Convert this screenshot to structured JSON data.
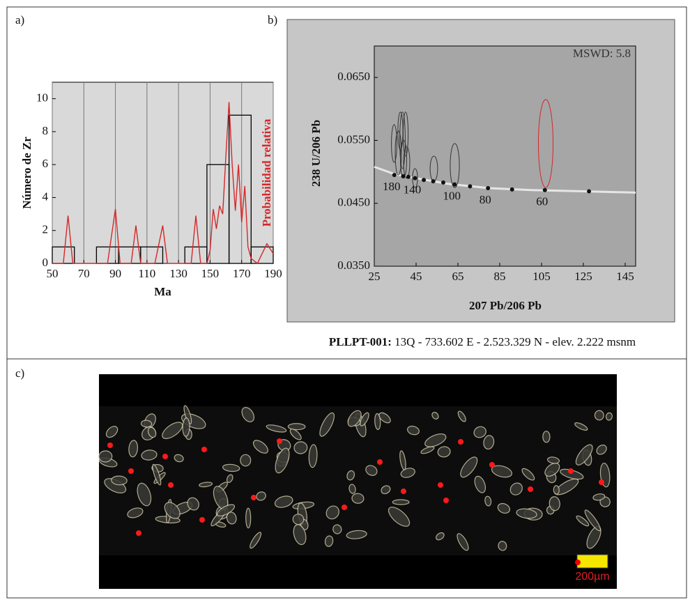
{
  "panel_labels": [
    "a)",
    "b)",
    "c)"
  ],
  "caption": {
    "sample": "PLLPT-001:",
    "text": " 13Q - 733.602 E - 2.523.329 N - elev. 2.222 msnm"
  },
  "scale_bar": "200µm",
  "chart_data": [
    {
      "type": "histogram",
      "xlabel": "Ma",
      "ylabel": "Número de Zr",
      "bins": [
        50,
        64,
        78,
        92,
        106,
        120,
        134,
        148,
        162,
        176,
        190
      ],
      "counts": [
        1,
        0,
        1,
        1,
        1,
        0,
        1,
        6,
        9,
        1
      ],
      "color": "#000000",
      "probability": {
        "name": "Probabilidad relativa",
        "color": "#d62728",
        "x": [
          50,
          57,
          60,
          63,
          70,
          85,
          90,
          93,
          100,
          103,
          106,
          115,
          120,
          123,
          138,
          141,
          144,
          148,
          150,
          152,
          154,
          156,
          158,
          160,
          162,
          164,
          166,
          168,
          170,
          172,
          174,
          176,
          180,
          186,
          190
        ],
        "values": [
          0,
          0,
          2.9,
          0,
          0,
          0,
          3.3,
          0,
          0,
          2.3,
          0,
          0,
          2.3,
          0,
          0,
          2.9,
          0,
          0,
          0.8,
          3.3,
          2.1,
          3.5,
          3.0,
          6.5,
          9.8,
          6,
          3.2,
          6.0,
          2.5,
          4.7,
          1.0,
          0.3,
          0,
          1.2,
          0.6
        ]
      },
      "xlim": [
        50,
        190
      ],
      "xticks": [
        50,
        70,
        90,
        110,
        130,
        150,
        170,
        190
      ],
      "ylim": [
        0,
        11
      ],
      "yticks": [
        0,
        2,
        4,
        6,
        8,
        10
      ],
      "grid": true
    },
    {
      "type": "concordia",
      "xlabel": "207 Pb/206 Pb",
      "ylabel": "238 U/206 Pb",
      "annotation": "MSWD: 5.8",
      "curve": {
        "color": "#e6e6e6",
        "x": [
          25,
          35,
          45,
          60,
          80,
          100,
          125,
          150
        ],
        "values": [
          0.0508,
          0.0496,
          0.049,
          0.0481,
          0.0474,
          0.0471,
          0.0469,
          0.0467
        ]
      },
      "age_points": {
        "x": [
          34.6,
          38.8,
          41.3,
          44.5,
          48.7,
          53.2,
          58.0,
          63.4,
          70.8,
          79.4,
          90.9,
          106.6,
          127.7
        ],
        "values": [
          0.0495,
          0.0493,
          0.0492,
          0.049,
          0.0487,
          0.0485,
          0.0483,
          0.048,
          0.0477,
          0.0474,
          0.0472,
          0.0471,
          0.0469
        ],
        "labels": [
          180,
          null,
          null,
          140,
          null,
          null,
          null,
          100,
          null,
          80,
          null,
          60,
          null
        ]
      },
      "ellipses": {
        "x": [
          34.5,
          36.5,
          37.5,
          38.5,
          39,
          40,
          40.5,
          44.5,
          53.5,
          63.5,
          107
        ],
        "values": [
          0.0545,
          0.053,
          0.0565,
          0.055,
          0.052,
          0.056,
          0.0515,
          0.049,
          0.0505,
          0.051,
          0.0545
        ],
        "x_err": [
          1.3,
          1.5,
          1.2,
          1.3,
          1.5,
          1.2,
          1.5,
          1.2,
          1.8,
          2.2,
          3.5
        ],
        "y_err": [
          0.003,
          0.0035,
          0.003,
          0.0045,
          0.003,
          0.0035,
          0.0025,
          0.0015,
          0.002,
          0.0035,
          0.007
        ],
        "colors": [
          "#333333",
          "#333333",
          "#333333",
          "#333333",
          "#333333",
          "#333333",
          "#333333",
          "#333333",
          "#333333",
          "#333333",
          "#d62728"
        ]
      },
      "xlim": [
        25,
        150
      ],
      "xticks": [
        25,
        45,
        65,
        85,
        105,
        125,
        145
      ],
      "ylim": [
        0.035,
        0.07
      ],
      "yticks": [
        {
          "value": 0.035,
          "label": "0.0350"
        },
        {
          "value": 0.045,
          "label": "0.0450"
        },
        {
          "value": 0.055,
          "label": "0.0550"
        },
        {
          "value": 0.065,
          "label": "0.0650"
        }
      ]
    }
  ]
}
